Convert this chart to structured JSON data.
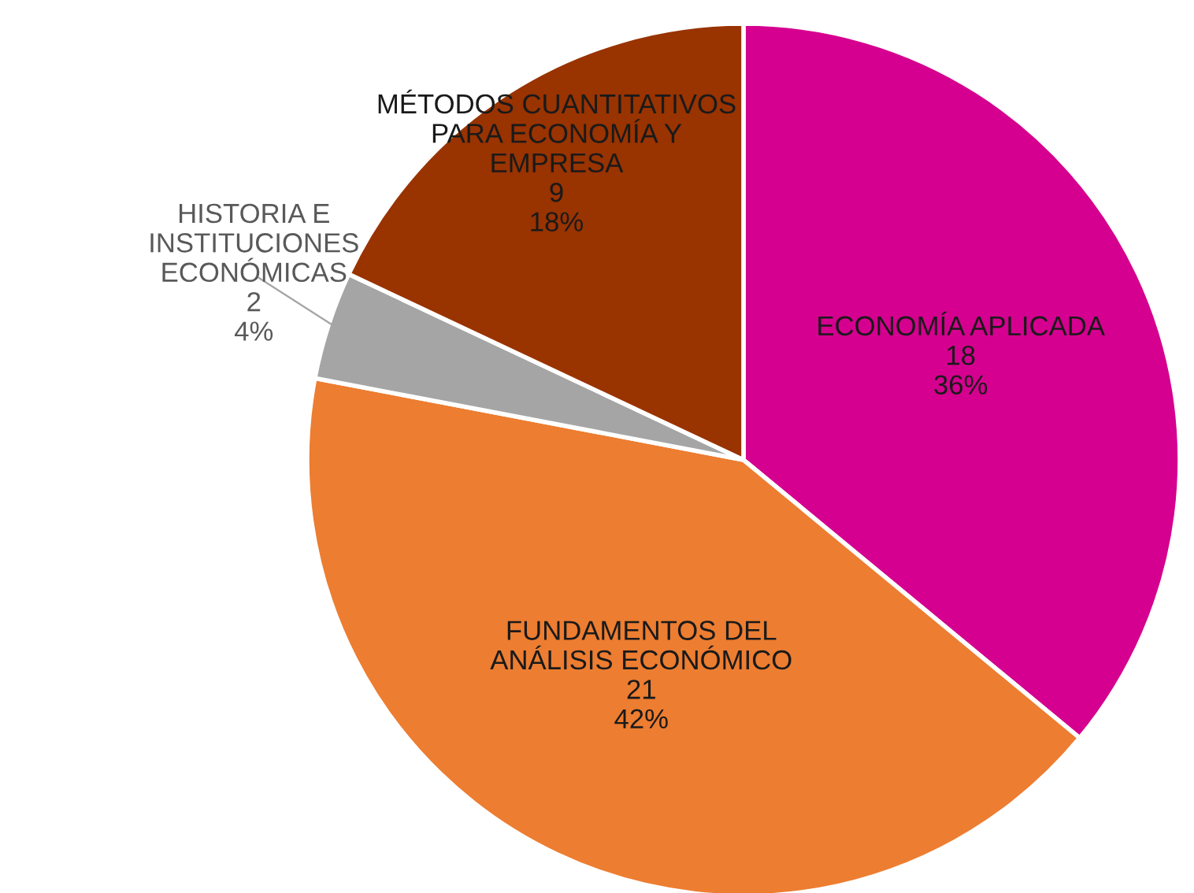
{
  "chart_data": {
    "type": "pie",
    "categories": [
      "ECONOMÍA APLICADA",
      "FUNDAMENTOS DEL\nANÁLISIS ECONÓMICO",
      "HISTORIA E\nINSTITUCIONES\nECONÓMICAS",
      "MÉTODOS CUANTITATIVOS\nPARA ECONOMÍA Y\nEMPRESA"
    ],
    "values": [
      18,
      21,
      2,
      9
    ],
    "value_labels": [
      "18\n36%",
      "21\n42%",
      "2\n4%",
      "9\n18%"
    ],
    "colors": [
      "#d5008f",
      "#ed7d31",
      "#a5a5a5",
      "#993300"
    ],
    "legend": false
  }
}
